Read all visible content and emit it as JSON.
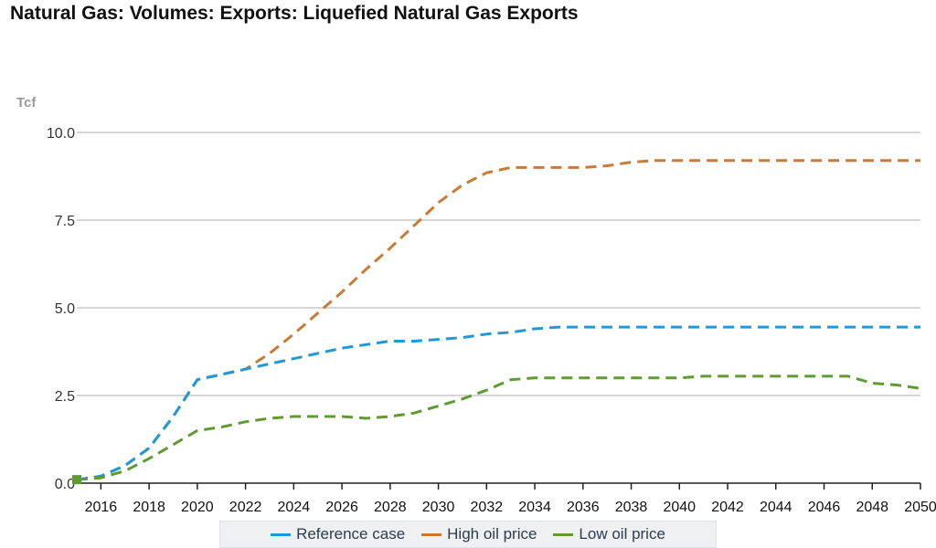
{
  "chart_data": {
    "type": "line",
    "title": "Natural Gas: Volumes: Exports: Liquefied Natural Gas Exports",
    "ylabel": "Tcf",
    "xlabel": "",
    "ylim": [
      0,
      10
    ],
    "yticks": [
      "0.0",
      "2.5",
      "5.0",
      "7.5",
      "10.0"
    ],
    "ytick_values": [
      0,
      2.5,
      5,
      7.5,
      10
    ],
    "xlim": [
      2015,
      2050
    ],
    "xticks": [
      "2016",
      "2018",
      "2020",
      "2022",
      "2024",
      "2026",
      "2028",
      "2030",
      "2032",
      "2034",
      "2036",
      "2038",
      "2040",
      "2042",
      "2044",
      "2046",
      "2048",
      "2050"
    ],
    "grid": "horizontal",
    "legend_position": "bottom",
    "x": [
      2015,
      2016,
      2017,
      2018,
      2019,
      2020,
      2021,
      2022,
      2023,
      2024,
      2025,
      2026,
      2027,
      2028,
      2029,
      2030,
      2031,
      2032,
      2033,
      2034,
      2035,
      2036,
      2037,
      2038,
      2039,
      2040,
      2041,
      2042,
      2043,
      2044,
      2045,
      2046,
      2047,
      2048,
      2049,
      2050
    ],
    "series": [
      {
        "name": "Reference case",
        "color": "#1f9ad6",
        "values": [
          0.1,
          0.2,
          0.5,
          1.0,
          1.9,
          2.95,
          3.1,
          3.25,
          3.4,
          3.55,
          3.7,
          3.85,
          3.95,
          4.05,
          4.05,
          4.1,
          4.15,
          4.25,
          4.3,
          4.4,
          4.45,
          4.45,
          4.45,
          4.45,
          4.45,
          4.45,
          4.45,
          4.45,
          4.45,
          4.45,
          4.45,
          4.45,
          4.45,
          4.45,
          4.45,
          4.45
        ]
      },
      {
        "name": "High oil price",
        "color": "#c77b36",
        "values": [
          0.1,
          0.2,
          0.5,
          1.0,
          1.9,
          2.95,
          3.1,
          3.25,
          3.7,
          4.25,
          4.85,
          5.45,
          6.1,
          6.7,
          7.35,
          8.0,
          8.5,
          8.85,
          9.0,
          9.0,
          9.0,
          9.0,
          9.05,
          9.15,
          9.2,
          9.2,
          9.2,
          9.2,
          9.2,
          9.2,
          9.2,
          9.2,
          9.2,
          9.2,
          9.2,
          9.2
        ]
      },
      {
        "name": "Low oil price",
        "color": "#5f9b32",
        "values": [
          0.1,
          0.15,
          0.35,
          0.7,
          1.1,
          1.5,
          1.6,
          1.75,
          1.85,
          1.9,
          1.9,
          1.9,
          1.85,
          1.9,
          2.0,
          2.2,
          2.4,
          2.65,
          2.95,
          3.0,
          3.0,
          3.0,
          3.0,
          3.0,
          3.0,
          3.0,
          3.05,
          3.05,
          3.05,
          3.05,
          3.05,
          3.05,
          3.05,
          2.85,
          2.8,
          2.7
        ]
      }
    ]
  }
}
